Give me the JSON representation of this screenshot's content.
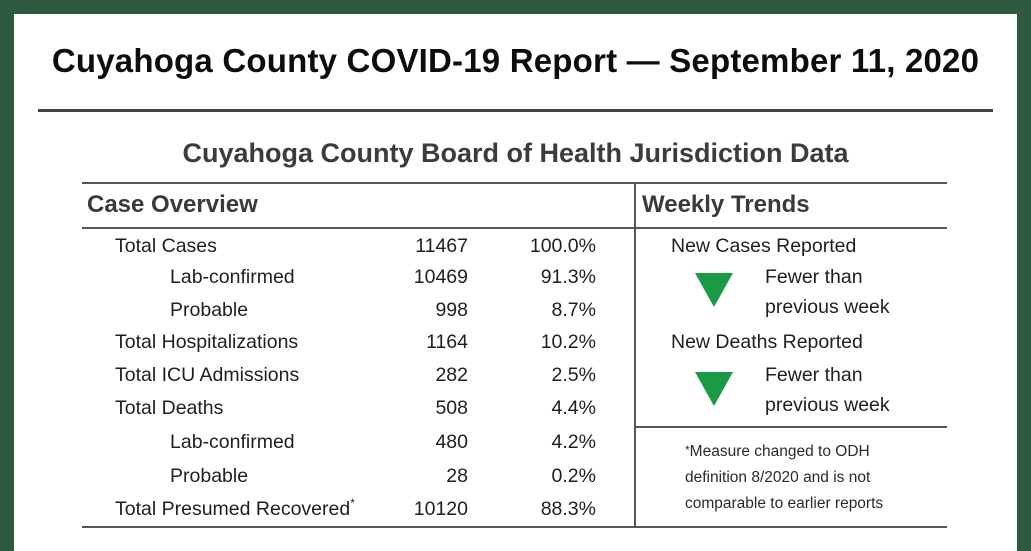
{
  "title": "Cuyahoga County COVID-19 Report — September 11, 2020",
  "subtitle": "Cuyahoga County Board of Health Jurisdiction Data",
  "case_overview": {
    "header": "Case Overview",
    "rows": [
      {
        "label": "Total Cases",
        "value": "11467",
        "pct": "100.0%"
      },
      {
        "label": "Lab-confirmed",
        "value": "10469",
        "pct": "91.3%"
      },
      {
        "label": "Probable",
        "value": "998",
        "pct": "8.7%"
      },
      {
        "label": "Total Hospitalizations",
        "value": "1164",
        "pct": "10.2%"
      },
      {
        "label": "Total ICU Admissions",
        "value": "282",
        "pct": "2.5%"
      },
      {
        "label": "Total Deaths",
        "value": "508",
        "pct": "4.4%"
      },
      {
        "label": "Lab-confirmed",
        "value": "480",
        "pct": "4.2%"
      },
      {
        "label": "Probable",
        "value": "28",
        "pct": "0.2%"
      },
      {
        "label": "Total Presumed Recovered",
        "label_mark": "*",
        "value": "10120",
        "pct": "88.3%"
      }
    ]
  },
  "weekly_trends": {
    "header": "Weekly Trends",
    "items": [
      {
        "label": "New Cases Reported",
        "trend_line1": "Fewer than",
        "trend_line2": "previous week",
        "icon": "down-triangle-icon",
        "color": "#1a9a45"
      },
      {
        "label": "New Deaths Reported",
        "trend_line1": "Fewer than",
        "trend_line2": "previous week",
        "icon": "down-triangle-icon",
        "color": "#1a9a45"
      }
    ],
    "note_mark": "*",
    "note_line1": "Measure changed to ODH",
    "note_line2": "definition 8/2020 and is not",
    "note_line3": "comparable to earlier reports"
  },
  "colors": {
    "frame": "#2e5a41",
    "trend_down": "#1a9a45"
  }
}
